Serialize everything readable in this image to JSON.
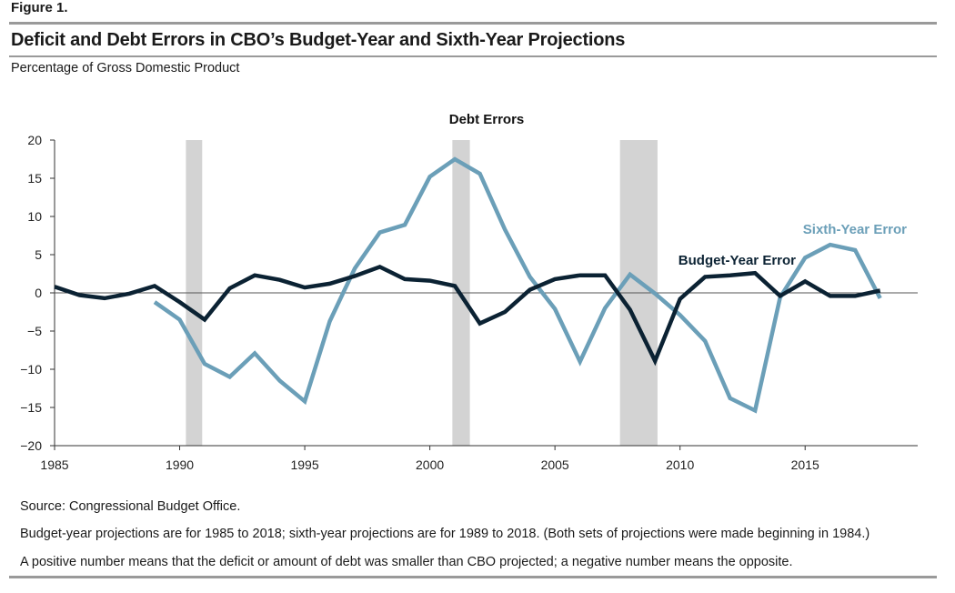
{
  "figure": {
    "label": "Figure 1.",
    "title": "Deficit and Debt Errors in CBO’s Budget-Year and Sixth-Year Projections",
    "subtitle": "Percentage of Gross Domestic Product"
  },
  "notes": {
    "source": "Source: Congressional Budget Office.",
    "note1": "Budget-year projections are for 1985 to 2018; sixth-year projections are for 1989 to 2018. (Both sets of projections were made beginning in 1984.)",
    "note2": "A positive number means that the deficit or amount of debt was smaller than CBO projected; a negative number means the opposite."
  },
  "chart_data": {
    "type": "line",
    "title": "Debt Errors",
    "xlim": [
      1985,
      2019.5
    ],
    "ylim": [
      -20,
      20
    ],
    "xticks": [
      1985,
      1990,
      1995,
      2000,
      2005,
      2010,
      2015
    ],
    "yticks": [
      20,
      15,
      10,
      5,
      0,
      -5,
      -10,
      -15,
      -20
    ],
    "ytick_labels": [
      "20",
      "15",
      "10",
      "5",
      "0",
      "−5",
      "−10",
      "−15",
      "−20"
    ],
    "zero_line": true,
    "recession_shading": [
      [
        1990.25,
        1990.9
      ],
      [
        2000.9,
        2001.6
      ],
      [
        2007.6,
        2009.1
      ]
    ],
    "series": [
      {
        "name": "Budget-Year Error",
        "color": "#0b2233",
        "x": [
          1985,
          1986,
          1987,
          1988,
          1989,
          1990,
          1991,
          1992,
          1993,
          1994,
          1995,
          1996,
          1997,
          1998,
          1999,
          2000,
          2001,
          2002,
          2003,
          2004,
          2005,
          2006,
          2007,
          2008,
          2009,
          2010,
          2011,
          2012,
          2013,
          2014,
          2015,
          2016,
          2017,
          2018
        ],
        "values": [
          0.8,
          -0.3,
          -0.7,
          -0.1,
          0.9,
          -1.2,
          -3.5,
          0.6,
          2.3,
          1.7,
          0.7,
          1.2,
          2.2,
          3.4,
          1.8,
          1.6,
          0.9,
          -4.0,
          -2.5,
          0.4,
          1.8,
          2.3,
          2.3,
          -2.2,
          -8.9,
          -0.8,
          2.1,
          2.3,
          2.6,
          -0.4,
          1.5,
          -0.4,
          -0.4,
          0.3
        ]
      },
      {
        "name": "Sixth-Year Error",
        "color": "#6b9fb8",
        "x": [
          1989,
          1990,
          1991,
          1992,
          1993,
          1994,
          1995,
          1996,
          1997,
          1998,
          1999,
          2000,
          2001,
          2002,
          2003,
          2004,
          2005,
          2006,
          2007,
          2008,
          2009,
          2010,
          2011,
          2012,
          2013,
          2014,
          2015,
          2016,
          2017,
          2018
        ],
        "values": [
          -1.2,
          -3.5,
          -9.3,
          -11.0,
          -7.9,
          -11.5,
          -14.2,
          -3.7,
          3.2,
          7.9,
          8.9,
          15.2,
          17.5,
          15.6,
          8.3,
          2.1,
          -2.1,
          -9.0,
          -2.0,
          2.4,
          -0.1,
          -2.9,
          -6.3,
          -13.8,
          -15.4,
          -0.6,
          4.6,
          6.3,
          5.6,
          -0.7
        ]
      }
    ]
  }
}
